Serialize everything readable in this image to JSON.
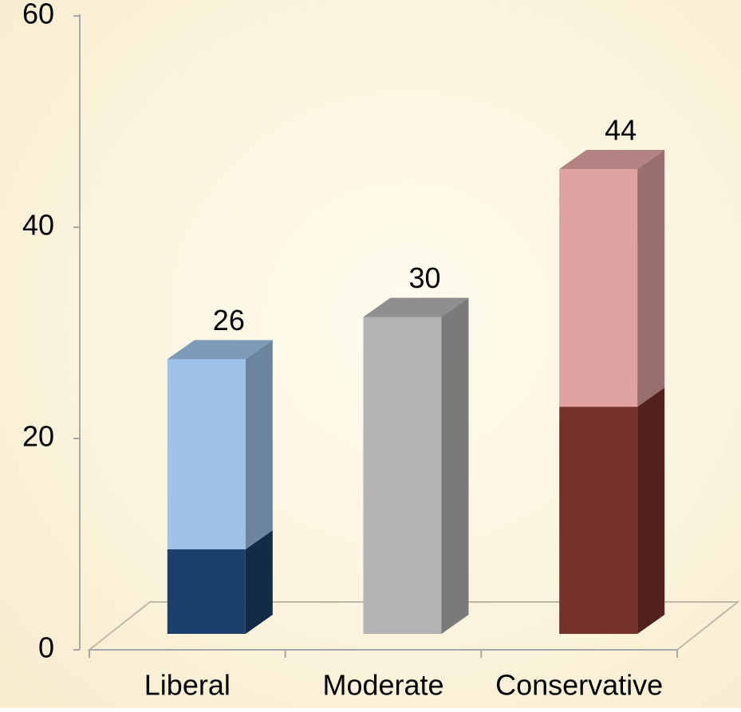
{
  "chart_data": {
    "type": "bar3d_stacked",
    "categories": [
      "Liberal",
      "Moderate",
      "Conservative"
    ],
    "series": [
      {
        "values": [
          8,
          30,
          21.5
        ],
        "colors": [
          "#1b4069",
          "#b3b3b3",
          "#78302a"
        ]
      },
      {
        "values": [
          18,
          null,
          22.5
        ],
        "colors": [
          "#9fc2e8",
          "#b3b3b3",
          "#e0a3a2"
        ]
      }
    ],
    "totals": [
      26,
      30,
      44
    ],
    "ylim": [
      0,
      60
    ],
    "yticks": [
      0,
      20,
      40,
      60
    ]
  }
}
